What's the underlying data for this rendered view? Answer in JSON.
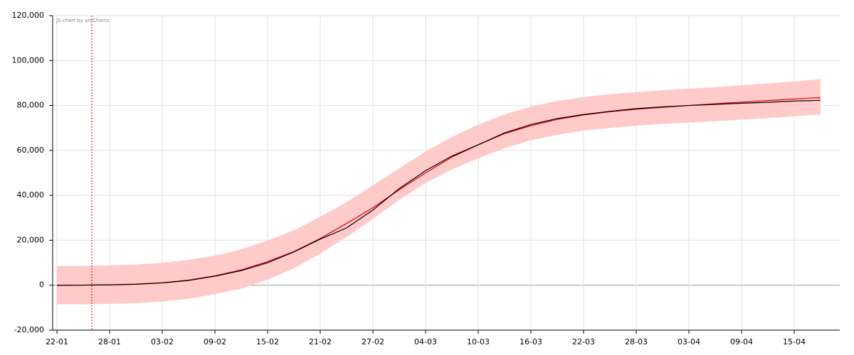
{
  "chart_data": {
    "type": "line",
    "credit": "JS chart by amCharts",
    "categories": [
      "22-01",
      null,
      "28-01",
      null,
      "03-02",
      null,
      "09-02",
      null,
      "15-02",
      null,
      "21-02",
      null,
      "27-02",
      null,
      "04-03",
      null,
      "10-03",
      null,
      "16-03",
      null,
      "22-03",
      null,
      "28-03",
      null,
      "03-04",
      null,
      "09-04",
      null,
      "15-04",
      null
    ],
    "ylim": [
      -20000,
      120000
    ],
    "yticks": [
      {
        "value": -20000,
        "label": "-20,000"
      },
      0,
      {
        "value": 20000,
        "label": "20,000"
      },
      {
        "value": 40000,
        "label": "40,000"
      },
      {
        "value": 60000,
        "label": "60,000"
      },
      {
        "value": 80000,
        "label": "80,000"
      },
      {
        "value": 100000,
        "label": "100,000"
      },
      {
        "value": 120000,
        "label": "120,000"
      }
    ],
    "grid": true,
    "band": {
      "color": "#ffcaca",
      "upper": [
        8500,
        8600,
        8800,
        9200,
        10000,
        11300,
        13200,
        16000,
        19800,
        24500,
        30500,
        37000,
        44500,
        52000,
        59500,
        66000,
        71500,
        76000,
        79500,
        82000,
        83700,
        85000,
        86000,
        86800,
        87500,
        88200,
        89000,
        89800,
        90700,
        91700
      ],
      "lower": [
        -8500,
        -8500,
        -8300,
        -8000,
        -7300,
        -6000,
        -4000,
        -1500,
        2500,
        7500,
        14000,
        21500,
        29500,
        38000,
        45500,
        51500,
        56500,
        61000,
        64500,
        67000,
        68800,
        70000,
        71000,
        71800,
        72400,
        73000,
        73700,
        74400,
        75200,
        76000
      ]
    },
    "series": [
      {
        "color": "#e00000",
        "values": [
          0,
          50,
          200,
          500,
          1100,
          2300,
          4200,
          6800,
          10500,
          15000,
          20800,
          27500,
          34500,
          42500,
          50000,
          57000,
          62500,
          67500,
          71000,
          73800,
          75800,
          77200,
          78300,
          79200,
          80000,
          80800,
          81500,
          82200,
          82900,
          83500
        ]
      },
      {
        "color": "#000000",
        "values": [
          0,
          50,
          150,
          400,
          1000,
          2100,
          4000,
          6500,
          10000,
          14800,
          20500,
          25500,
          33500,
          43000,
          51000,
          57500,
          62500,
          67800,
          71500,
          74200,
          76000,
          77400,
          78600,
          79400,
          80000,
          80500,
          81000,
          81400,
          82000,
          82300
        ]
      }
    ]
  }
}
